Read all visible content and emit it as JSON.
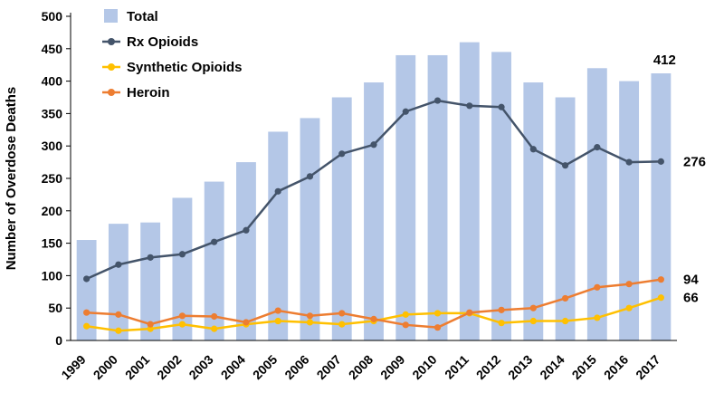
{
  "chart_data": {
    "type": "bar+line",
    "title": "",
    "ylabel": "Number of Overdose Deaths",
    "xlabel": "",
    "ylim": [
      0,
      500
    ],
    "ytick_step": 50,
    "grid": false,
    "legend_position": "top-left",
    "axis_color": "#000000",
    "text_color": "#000000",
    "categories": [
      "1999",
      "2000",
      "2001",
      "2002",
      "2003",
      "2004",
      "2005",
      "2006",
      "2007",
      "2008",
      "2009",
      "2010",
      "2011",
      "2012",
      "2013",
      "2014",
      "2015",
      "2016",
      "2017"
    ],
    "series": [
      {
        "name": "Total",
        "type": "bar",
        "color": "#b4c7e7",
        "values": [
          155,
          180,
          182,
          220,
          245,
          275,
          322,
          343,
          375,
          398,
          440,
          440,
          460,
          445,
          398,
          375,
          420,
          400,
          412
        ]
      },
      {
        "name": "Rx Opioids",
        "type": "line",
        "color": "#44546a",
        "values": [
          95,
          117,
          128,
          133,
          152,
          170,
          230,
          253,
          288,
          302,
          353,
          370,
          362,
          360,
          295,
          270,
          298,
          275,
          276
        ]
      },
      {
        "name": "Synthetic Opioids",
        "type": "line",
        "color": "#ffc000",
        "values": [
          22,
          15,
          18,
          25,
          18,
          25,
          30,
          28,
          25,
          30,
          40,
          42,
          42,
          27,
          30,
          30,
          35,
          50,
          66
        ]
      },
      {
        "name": "Heroin",
        "type": "line",
        "color": "#ed7d31",
        "values": [
          43,
          40,
          25,
          38,
          37,
          28,
          46,
          38,
          42,
          33,
          24,
          20,
          43,
          47,
          50,
          65,
          82,
          87,
          94
        ]
      }
    ],
    "annotations": [
      {
        "series": "Total",
        "text": "412"
      },
      {
        "series": "Rx Opioids",
        "text": "276"
      },
      {
        "series": "Heroin",
        "text": "94"
      },
      {
        "series": "Synthetic Opioids",
        "text": "66"
      }
    ]
  }
}
